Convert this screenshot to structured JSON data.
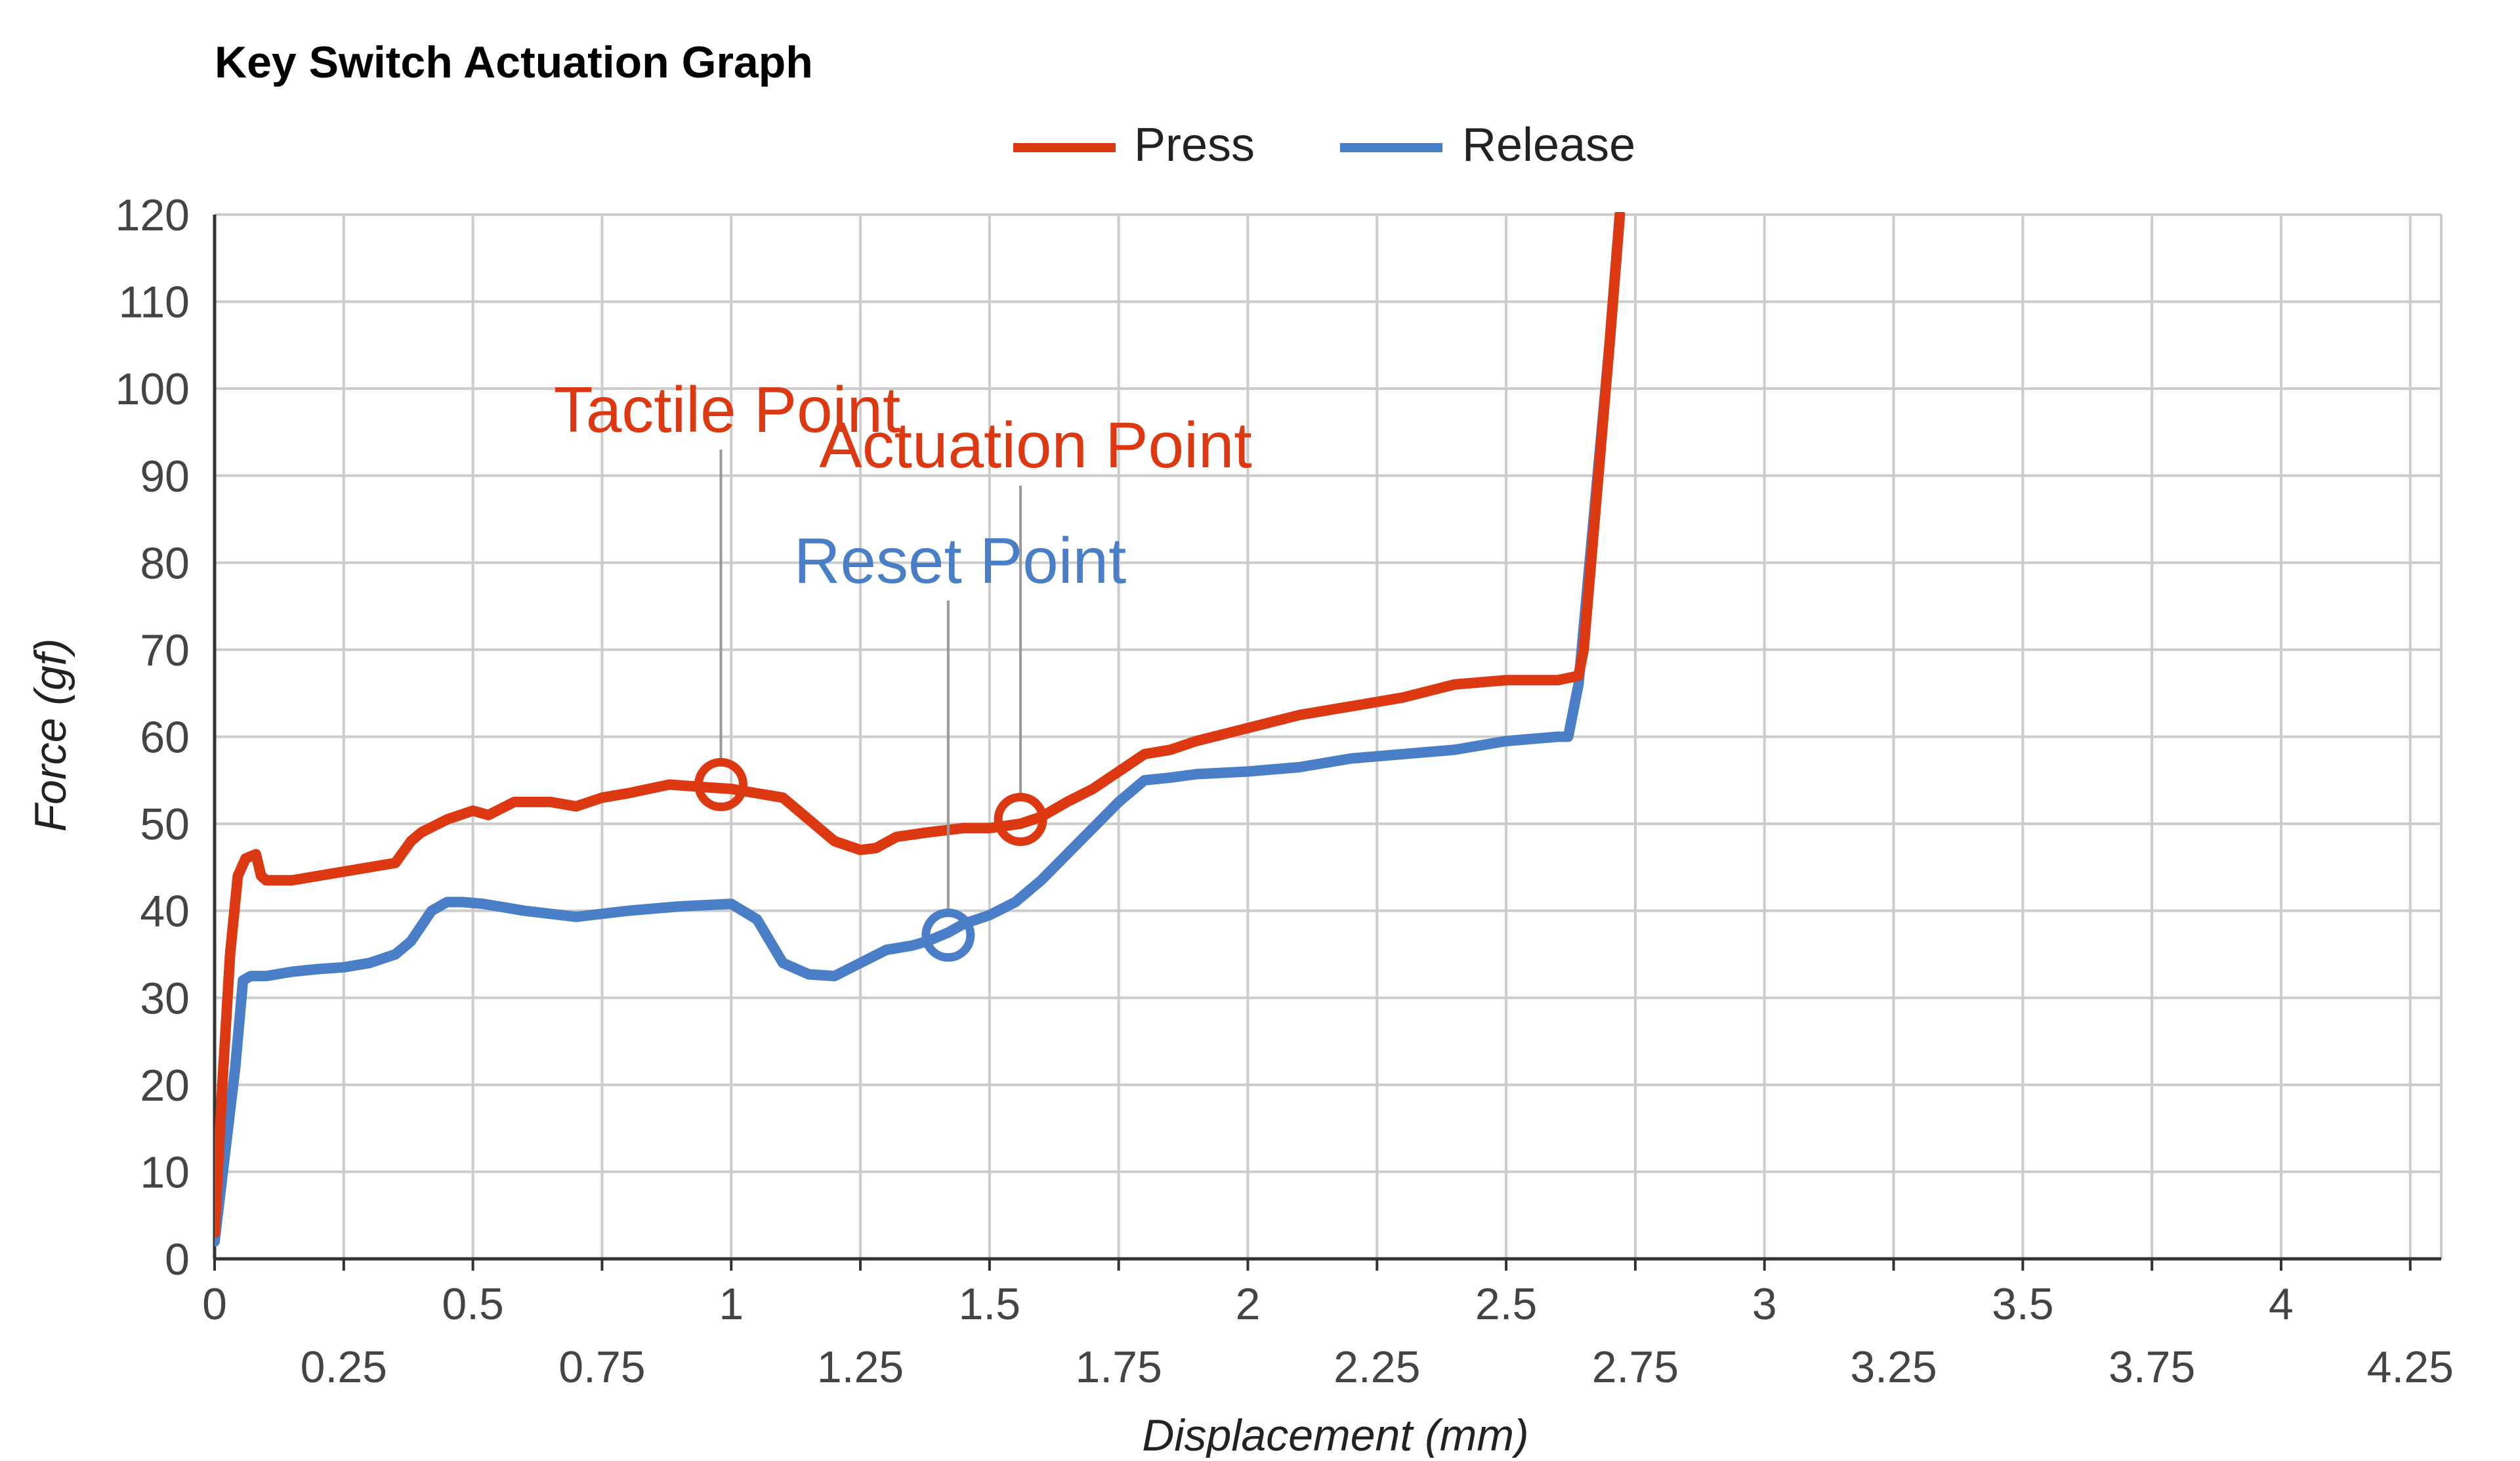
{
  "chart_data": {
    "type": "line",
    "title": "Key Switch Actuation Graph",
    "xlabel": "Displacement (mm)",
    "ylabel": "Force (gf)",
    "xlim": [
      0,
      4.31
    ],
    "ylim": [
      0,
      120
    ],
    "x_ticks_major": [
      0,
      0.5,
      1,
      1.5,
      2,
      2.5,
      3,
      3.5,
      4
    ],
    "x_tick_labels_major": [
      "0",
      "0.5",
      "1",
      "1.5",
      "2",
      "2.5",
      "3",
      "3.5",
      "4"
    ],
    "x_ticks_minor": [
      0.25,
      0.75,
      1.25,
      1.75,
      2.25,
      2.75,
      3.25,
      3.75,
      4.25
    ],
    "x_tick_labels_minor": [
      "0.25",
      "0.75",
      "1.25",
      "1.75",
      "2.25",
      "2.75",
      "3.25",
      "3.75",
      "4.25"
    ],
    "y_ticks": [
      0,
      10,
      20,
      30,
      40,
      50,
      60,
      70,
      80,
      90,
      100,
      110,
      120
    ],
    "y_tick_labels": [
      "0",
      "10",
      "20",
      "30",
      "40",
      "50",
      "60",
      "70",
      "80",
      "90",
      "100",
      "110",
      "120"
    ],
    "grid": true,
    "legend_position": "top-center",
    "series": [
      {
        "name": "Press",
        "color": "#dc3912",
        "x": [
          0,
          0.015,
          0.03,
          0.045,
          0.06,
          0.08,
          0.09,
          0.1,
          0.12,
          0.15,
          0.2,
          0.25,
          0.3,
          0.35,
          0.38,
          0.4,
          0.45,
          0.5,
          0.53,
          0.58,
          0.65,
          0.7,
          0.75,
          0.8,
          0.88,
          0.95,
          1.0,
          1.05,
          1.1,
          1.15,
          1.2,
          1.25,
          1.28,
          1.32,
          1.38,
          1.45,
          1.5,
          1.56,
          1.6,
          1.65,
          1.7,
          1.75,
          1.8,
          1.85,
          1.9,
          2.0,
          2.1,
          2.2,
          2.3,
          2.4,
          2.5,
          2.6,
          2.64,
          2.65,
          2.7,
          2.72
        ],
        "y": [
          3,
          20,
          35,
          44,
          46,
          46.5,
          44,
          43.5,
          43.5,
          43.5,
          44,
          44.5,
          45,
          45.5,
          48,
          49,
          50.5,
          51.5,
          51,
          52.5,
          52.5,
          52,
          53,
          53.5,
          54.5,
          54.2,
          54,
          53.5,
          53,
          50.5,
          48,
          47,
          47.2,
          48.5,
          49,
          49.5,
          49.5,
          50,
          50.8,
          52.5,
          54,
          56,
          58,
          58.5,
          59.5,
          61,
          62.5,
          63.5,
          64.5,
          66,
          66.5,
          66.5,
          67,
          70,
          105,
          120
        ]
      },
      {
        "name": "Release",
        "color": "#4a7fc7",
        "x": [
          0,
          0.02,
          0.04,
          0.055,
          0.07,
          0.1,
          0.15,
          0.2,
          0.25,
          0.3,
          0.35,
          0.38,
          0.42,
          0.45,
          0.48,
          0.52,
          0.6,
          0.7,
          0.8,
          0.9,
          1.0,
          1.05,
          1.1,
          1.15,
          1.2,
          1.25,
          1.3,
          1.35,
          1.38,
          1.42,
          1.45,
          1.5,
          1.55,
          1.6,
          1.65,
          1.7,
          1.75,
          1.8,
          1.85,
          1.9,
          2.0,
          2.1,
          2.2,
          2.3,
          2.4,
          2.5,
          2.6,
          2.62,
          2.64,
          2.7,
          2.72
        ],
        "y": [
          2,
          12,
          22,
          32,
          32.5,
          32.5,
          33,
          33.3,
          33.5,
          34,
          35,
          36.5,
          40,
          41,
          41,
          40.8,
          40,
          39.3,
          40,
          40.5,
          40.8,
          39,
          34,
          32.7,
          32.5,
          34,
          35.5,
          36,
          36.5,
          37.5,
          38.5,
          39.5,
          41,
          43.5,
          46.5,
          49.5,
          52.5,
          55,
          55.3,
          55.7,
          56,
          56.5,
          57.5,
          58,
          58.5,
          59.5,
          60,
          60,
          66,
          105,
          120
        ]
      }
    ],
    "annotations": [
      {
        "text": "Tactile Point",
        "series": "Press",
        "x": 0.98,
        "y": 54.5,
        "color": "#dc3912"
      },
      {
        "text": "Actuation Point",
        "series": "Press",
        "x": 1.56,
        "y": 50.5,
        "color": "#dc3912"
      },
      {
        "text": "Reset Point",
        "series": "Release",
        "x": 1.42,
        "y": 37.2,
        "color": "#4a7fc7"
      }
    ]
  }
}
